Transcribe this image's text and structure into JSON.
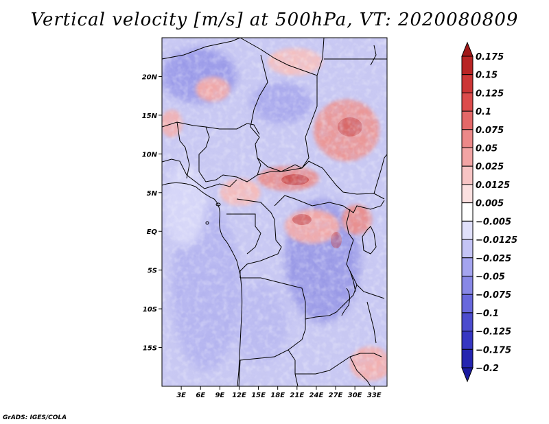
{
  "title": "Vertical velocity [m/s] at 500hPa, VT: 2020080809",
  "credit": "GrADS: IGES/COLA",
  "map": {
    "lon_range": [
      0,
      35
    ],
    "lat_range": [
      -20,
      25
    ],
    "x_ticks": [
      "3E",
      "6E",
      "9E",
      "12E",
      "15E",
      "18E",
      "21E",
      "24E",
      "27E",
      "30E",
      "33E"
    ],
    "y_ticks": [
      "20N",
      "15N",
      "10N",
      "5N",
      "EQ",
      "5S",
      "10S",
      "15S"
    ]
  },
  "colorbar": {
    "labels": [
      "0.175",
      "0.15",
      "0.125",
      "0.1",
      "0.075",
      "0.05",
      "0.025",
      "0.0125",
      "0.005",
      "−0.005",
      "−0.0125",
      "−0.025",
      "−0.05",
      "−0.075",
      "−0.1",
      "−0.125",
      "−0.175",
      "−0.2"
    ],
    "colors": [
      "#a01818",
      "#b82424",
      "#cc3636",
      "#dc4c4c",
      "#e46868",
      "#ec8888",
      "#f2a4a4",
      "#f7c4c4",
      "#fbe0e0",
      "#ffffff",
      "#e0e0fb",
      "#c4c4f5",
      "#a4a4ef",
      "#8888e6",
      "#6868dc",
      "#4c4cce",
      "#3636c2",
      "#2424b0",
      "#1a1aa0"
    ]
  }
}
